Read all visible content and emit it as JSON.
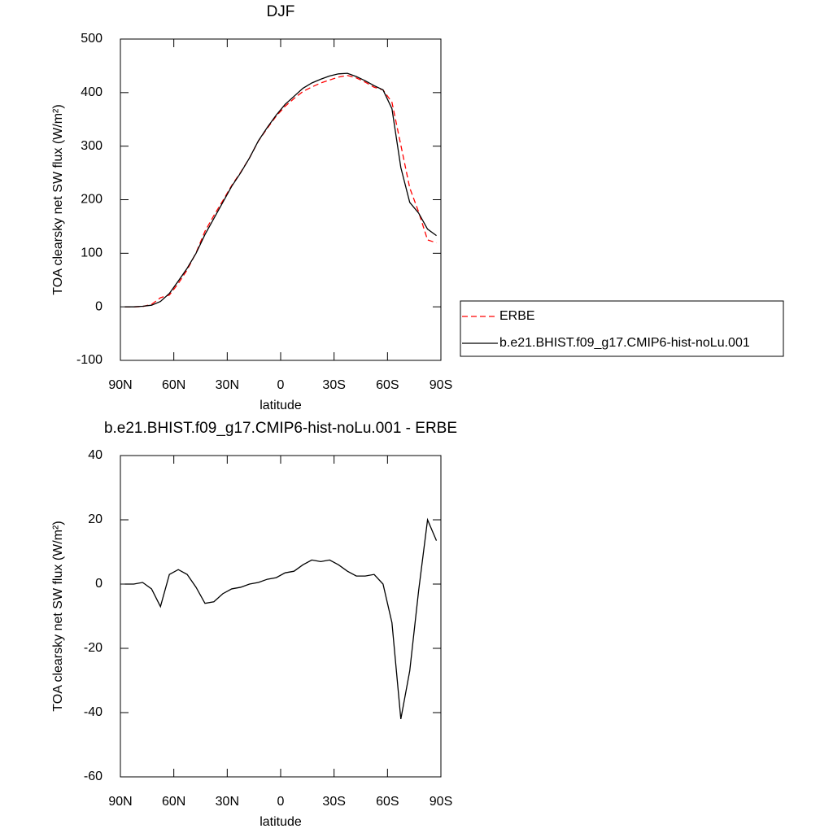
{
  "chart_data": [
    {
      "type": "line",
      "title": "DJF",
      "xlabel": "latitude",
      "ylabel": "TOA clearsky net SW flux (W/m²)",
      "x": [
        87.5,
        82.5,
        77.5,
        72.5,
        67.5,
        62.5,
        57.5,
        52.5,
        47.5,
        42.5,
        37.5,
        32.5,
        27.5,
        22.5,
        17.5,
        12.5,
        7.5,
        2.5,
        -2.5,
        -7.5,
        -12.5,
        -17.5,
        -22.5,
        -27.5,
        -32.5,
        -37.5,
        -42.5,
        -47.5,
        -52.5,
        -57.5,
        -62.5,
        -67.5,
        -72.5,
        -77.5,
        -82.5,
        -87.5
      ],
      "series": [
        {
          "name": "ERBE",
          "color": "#ff0000",
          "style": "dashed",
          "values": [
            0,
            0,
            0.5,
            4.5,
            17,
            22,
            43.5,
            69,
            101,
            141,
            170.5,
            198,
            226.5,
            251,
            278,
            309.5,
            333.5,
            356,
            374.5,
            389,
            402,
            410.5,
            418,
            423.5,
            429,
            432,
            427.5,
            419.5,
            410,
            405,
            382,
            302,
            222,
            177,
            125,
            119.5
          ]
        },
        {
          "name": "b.e21.BHIST.f09_g17.CMIP6-hist-noLu.001",
          "color": "#000000",
          "style": "solid",
          "values": [
            0,
            0,
            1,
            3,
            10,
            25,
            48,
            72,
            100,
            135,
            165,
            195,
            225,
            250,
            278,
            310,
            335,
            358,
            378,
            393,
            408,
            418,
            425,
            431,
            435,
            436,
            430,
            422,
            413,
            405,
            370,
            260,
            195,
            175,
            145,
            133
          ]
        }
      ],
      "xlim": [
        90,
        -90
      ],
      "xticks": [
        {
          "value": 90,
          "label": "90N"
        },
        {
          "value": 60,
          "label": "60N"
        },
        {
          "value": 30,
          "label": "30N"
        },
        0,
        {
          "value": -30,
          "label": "30S"
        },
        {
          "value": -60,
          "label": "60S"
        },
        {
          "value": -90,
          "label": "90S"
        }
      ],
      "ylim": [
        -100,
        500
      ],
      "yticks": [
        -100,
        0,
        100,
        200,
        300,
        400,
        500
      ],
      "legend": "right"
    },
    {
      "type": "line",
      "title": "b.e21.BHIST.f09_g17.CMIP6-hist-noLu.001 - ERBE",
      "xlabel": "latitude",
      "ylabel": "TOA clearsky net SW flux (W/m²)",
      "x": [
        87.5,
        82.5,
        77.5,
        72.5,
        67.5,
        62.5,
        57.5,
        52.5,
        47.5,
        42.5,
        37.5,
        32.5,
        27.5,
        22.5,
        17.5,
        12.5,
        7.5,
        2.5,
        -2.5,
        -7.5,
        -12.5,
        -17.5,
        -22.5,
        -27.5,
        -32.5,
        -37.5,
        -42.5,
        -47.5,
        -52.5,
        -57.5,
        -62.5,
        -67.5,
        -72.5,
        -77.5,
        -82.5,
        -87.5
      ],
      "series": [
        {
          "color": "#000000",
          "style": "solid",
          "values": [
            0,
            0,
            0.5,
            -1.5,
            -7,
            3,
            4.5,
            3,
            -1,
            -6,
            -5.5,
            -3,
            -1.5,
            -1,
            0,
            0.5,
            1.5,
            2,
            3.5,
            4,
            6,
            7.5,
            7,
            7.5,
            6,
            4,
            2.5,
            2.5,
            3,
            0,
            -12,
            -42,
            -27,
            -2,
            20,
            13.5
          ]
        }
      ],
      "xlim": [
        90,
        -90
      ],
      "xticks": [
        {
          "value": 90,
          "label": "90N"
        },
        {
          "value": 60,
          "label": "60N"
        },
        {
          "value": 30,
          "label": "30N"
        },
        0,
        {
          "value": -30,
          "label": "30S"
        },
        {
          "value": -60,
          "label": "60S"
        },
        {
          "value": -90,
          "label": "90S"
        }
      ],
      "ylim": [
        -60,
        40
      ],
      "yticks": [
        -60,
        -40,
        -20,
        0,
        20,
        40
      ]
    }
  ]
}
